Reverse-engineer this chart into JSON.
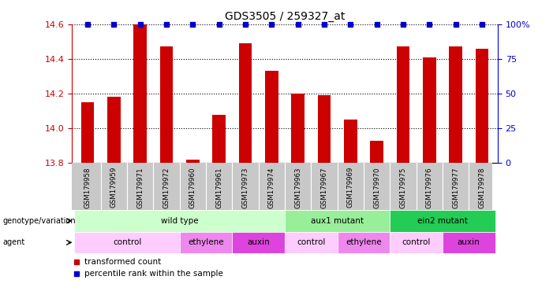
{
  "title": "GDS3505 / 259327_at",
  "samples": [
    "GSM179958",
    "GSM179959",
    "GSM179971",
    "GSM179972",
    "GSM179960",
    "GSM179961",
    "GSM179973",
    "GSM179974",
    "GSM179963",
    "GSM179967",
    "GSM179969",
    "GSM179970",
    "GSM179975",
    "GSM179976",
    "GSM179977",
    "GSM179978"
  ],
  "bar_values": [
    14.15,
    14.18,
    14.6,
    14.47,
    13.82,
    14.08,
    14.49,
    14.33,
    14.2,
    14.19,
    14.05,
    13.93,
    14.47,
    14.41,
    14.47,
    14.46
  ],
  "bar_color": "#cc0000",
  "blue_color": "#0000cc",
  "ylim": [
    13.8,
    14.6
  ],
  "yticks_left": [
    13.8,
    14.0,
    14.2,
    14.4,
    14.6
  ],
  "yticks_right": [
    0,
    25,
    50,
    75,
    100
  ],
  "ytick_labels_right": [
    "0",
    "25",
    "50",
    "75",
    "100%"
  ],
  "groups": [
    {
      "label": "wild type",
      "start": 0,
      "end": 8,
      "color": "#ccffcc"
    },
    {
      "label": "aux1 mutant",
      "start": 8,
      "end": 12,
      "color": "#99ee99"
    },
    {
      "label": "ein2 mutant",
      "start": 12,
      "end": 16,
      "color": "#22cc55"
    }
  ],
  "agents": [
    {
      "label": "control",
      "start": 0,
      "end": 4,
      "color": "#ffccff"
    },
    {
      "label": "ethylene",
      "start": 4,
      "end": 6,
      "color": "#ee88ee"
    },
    {
      "label": "auxin",
      "start": 6,
      "end": 8,
      "color": "#dd44dd"
    },
    {
      "label": "control",
      "start": 8,
      "end": 10,
      "color": "#ffccff"
    },
    {
      "label": "ethylene",
      "start": 10,
      "end": 12,
      "color": "#ee88ee"
    },
    {
      "label": "control",
      "start": 12,
      "end": 14,
      "color": "#ffccff"
    },
    {
      "label": "auxin",
      "start": 14,
      "end": 16,
      "color": "#dd44dd"
    }
  ],
  "legend_items": [
    {
      "label": "transformed count",
      "color": "#cc0000"
    },
    {
      "label": "percentile rank within the sample",
      "color": "#0000cc"
    }
  ],
  "xtick_bg_color": "#c8c8c8",
  "title_fontsize": 10,
  "bar_width": 0.5
}
